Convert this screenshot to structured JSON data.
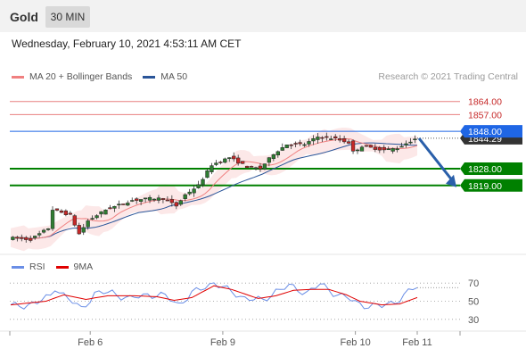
{
  "header": {
    "title": "Gold",
    "timeframe": "30 MIN",
    "datetime": "Wednesday, February 10, 2021 4:53:11 AM CET",
    "credit": "Research © 2021 Trading Central"
  },
  "legend_main": [
    {
      "label": "MA 20 + Bollinger Bands",
      "color": "#f08080"
    },
    {
      "label": "MA 50",
      "color": "#2a5599"
    }
  ],
  "legend_rsi": [
    {
      "label": "RSI",
      "color": "#6a8ee6"
    },
    {
      "label": "9MA",
      "color": "#e00000"
    }
  ],
  "colors": {
    "up": "#2e7d32",
    "down": "#c62828",
    "resistance": "#e88080",
    "support": "#008000",
    "pivot": "#1f66e5",
    "arrow": "#2a5faa",
    "price_tag": "#333333"
  },
  "chart_data": {
    "type": "candlestick",
    "ylim": [
      1783,
      1872
    ],
    "current_price": {
      "label": "1844.29",
      "value": 1844.29
    },
    "levels": [
      {
        "label": "1864.00",
        "value": 1864.0,
        "kind": "resistance"
      },
      {
        "label": "1857.00",
        "value": 1857.0,
        "kind": "resistance"
      },
      {
        "label": "1848.00",
        "value": 1848.0,
        "kind": "pivot"
      },
      {
        "label": "1828.00",
        "value": 1828.0,
        "kind": "support"
      },
      {
        "label": "1819.00",
        "value": 1819.0,
        "kind": "support"
      }
    ],
    "x_ticks": [
      "Feb 6",
      "Feb 9",
      "Feb 10",
      "Feb 11"
    ],
    "x_tick_index": [
      18,
      48,
      78,
      92
    ],
    "num_candles": 92,
    "anchors": [
      [
        0,
        1791
      ],
      [
        5,
        1790
      ],
      [
        9,
        1796
      ],
      [
        10,
        1806
      ],
      [
        14,
        1803
      ],
      [
        16,
        1793
      ],
      [
        18,
        1800
      ],
      [
        22,
        1806
      ],
      [
        28,
        1811
      ],
      [
        32,
        1812
      ],
      [
        35,
        1812
      ],
      [
        38,
        1808
      ],
      [
        40,
        1814
      ],
      [
        43,
        1819
      ],
      [
        46,
        1830
      ],
      [
        50,
        1834
      ],
      [
        54,
        1829
      ],
      [
        57,
        1828
      ],
      [
        60,
        1836
      ],
      [
        63,
        1841
      ],
      [
        67,
        1841
      ],
      [
        70,
        1845
      ],
      [
        74,
        1844
      ],
      [
        77,
        1842
      ],
      [
        78,
        1837
      ],
      [
        80,
        1840
      ],
      [
        85,
        1838
      ],
      [
        88,
        1839
      ],
      [
        92,
        1844
      ]
    ],
    "forecast": {
      "from": 1844.29,
      "to": 1819.0
    },
    "rsi": {
      "levels": [
        70,
        50,
        30
      ],
      "ylim": [
        20,
        80
      ],
      "anchors": [
        [
          0,
          44
        ],
        [
          6,
          48
        ],
        [
          9,
          56
        ],
        [
          10,
          66
        ],
        [
          13,
          52
        ],
        [
          16,
          42
        ],
        [
          19,
          58
        ],
        [
          23,
          60
        ],
        [
          27,
          52
        ],
        [
          31,
          58
        ],
        [
          35,
          55
        ],
        [
          38,
          47
        ],
        [
          41,
          58
        ],
        [
          44,
          66
        ],
        [
          46,
          71
        ],
        [
          49,
          62
        ],
        [
          53,
          54
        ],
        [
          57,
          50
        ],
        [
          60,
          62
        ],
        [
          63,
          66
        ],
        [
          67,
          60
        ],
        [
          70,
          68
        ],
        [
          73,
          60
        ],
        [
          76,
          54
        ],
        [
          78,
          48
        ],
        [
          80,
          46
        ],
        [
          84,
          44
        ],
        [
          87,
          50
        ],
        [
          92,
          66
        ]
      ],
      "ma_anchors": [
        [
          0,
          46
        ],
        [
          8,
          50
        ],
        [
          12,
          57
        ],
        [
          17,
          52
        ],
        [
          22,
          56
        ],
        [
          28,
          56
        ],
        [
          33,
          55
        ],
        [
          37,
          51
        ],
        [
          41,
          54
        ],
        [
          46,
          67
        ],
        [
          50,
          63
        ],
        [
          56,
          53
        ],
        [
          60,
          56
        ],
        [
          64,
          62
        ],
        [
          68,
          63
        ],
        [
          72,
          63
        ],
        [
          76,
          57
        ],
        [
          79,
          50
        ],
        [
          84,
          46
        ],
        [
          88,
          47
        ],
        [
          92,
          54
        ]
      ]
    }
  }
}
